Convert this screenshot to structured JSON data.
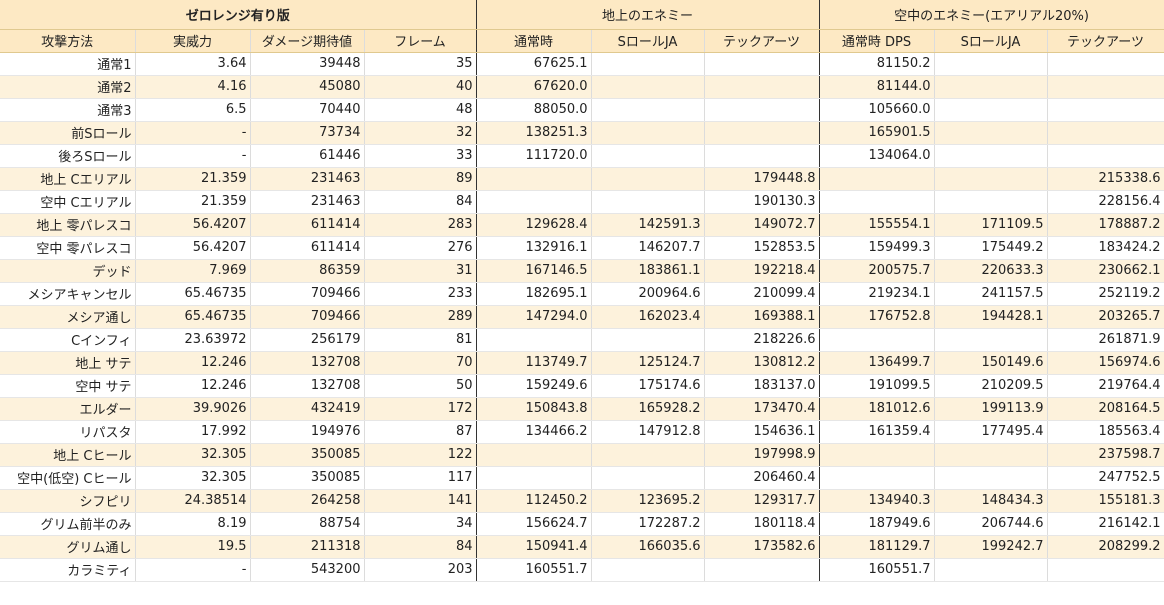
{
  "groups": [
    "ゼロレンジ有り版",
    "地上のエネミー",
    "空中のエネミー(エアリアル20%)"
  ],
  "headers": [
    "攻撃方法",
    "実威力",
    "ダメージ期待値",
    "フレーム",
    "通常時",
    "SロールJA",
    "テックアーツ",
    "通常時 DPS",
    "SロールJA",
    "テックアーツ"
  ],
  "rows": [
    [
      "通常1",
      "3.64",
      "39448",
      "35",
      "67625.1",
      "",
      "",
      "81150.2",
      "",
      ""
    ],
    [
      "通常2",
      "4.16",
      "45080",
      "40",
      "67620.0",
      "",
      "",
      "81144.0",
      "",
      ""
    ],
    [
      "通常3",
      "6.5",
      "70440",
      "48",
      "88050.0",
      "",
      "",
      "105660.0",
      "",
      ""
    ],
    [
      "前Sロール",
      "-",
      "73734",
      "32",
      "138251.3",
      "",
      "",
      "165901.5",
      "",
      ""
    ],
    [
      "後ろSロール",
      "-",
      "61446",
      "33",
      "111720.0",
      "",
      "",
      "134064.0",
      "",
      ""
    ],
    [
      "地上 Cエリアル",
      "21.359",
      "231463",
      "89",
      "",
      "",
      "179448.8",
      "",
      "",
      "215338.6"
    ],
    [
      "空中 Cエリアル",
      "21.359",
      "231463",
      "84",
      "",
      "",
      "190130.3",
      "",
      "",
      "228156.4"
    ],
    [
      "地上 零パレスコ",
      "56.4207",
      "611414",
      "283",
      "129628.4",
      "142591.3",
      "149072.7",
      "155554.1",
      "171109.5",
      "178887.2"
    ],
    [
      "空中 零パレスコ",
      "56.4207",
      "611414",
      "276",
      "132916.1",
      "146207.7",
      "152853.5",
      "159499.3",
      "175449.2",
      "183424.2"
    ],
    [
      "デッド",
      "7.969",
      "86359",
      "31",
      "167146.5",
      "183861.1",
      "192218.4",
      "200575.7",
      "220633.3",
      "230662.1"
    ],
    [
      "メシアキャンセル",
      "65.46735",
      "709466",
      "233",
      "182695.1",
      "200964.6",
      "210099.4",
      "219234.1",
      "241157.5",
      "252119.2"
    ],
    [
      "メシア通し",
      "65.46735",
      "709466",
      "289",
      "147294.0",
      "162023.4",
      "169388.1",
      "176752.8",
      "194428.1",
      "203265.7"
    ],
    [
      "Cインフィ",
      "23.63972",
      "256179",
      "81",
      "",
      "",
      "218226.6",
      "",
      "",
      "261871.9"
    ],
    [
      "地上 サテ",
      "12.246",
      "132708",
      "70",
      "113749.7",
      "125124.7",
      "130812.2",
      "136499.7",
      "150149.6",
      "156974.6"
    ],
    [
      "空中 サテ",
      "12.246",
      "132708",
      "50",
      "159249.6",
      "175174.6",
      "183137.0",
      "191099.5",
      "210209.5",
      "219764.4"
    ],
    [
      "エルダー",
      "39.9026",
      "432419",
      "172",
      "150843.8",
      "165928.2",
      "173470.4",
      "181012.6",
      "199113.9",
      "208164.5"
    ],
    [
      "リパスタ",
      "17.992",
      "194976",
      "87",
      "134466.2",
      "147912.8",
      "154636.1",
      "161359.4",
      "177495.4",
      "185563.4"
    ],
    [
      "地上 Cヒール",
      "32.305",
      "350085",
      "122",
      "",
      "",
      "197998.9",
      "",
      "",
      "237598.7"
    ],
    [
      "空中(低空) Cヒール",
      "32.305",
      "350085",
      "117",
      "",
      "",
      "206460.4",
      "",
      "",
      "247752.5"
    ],
    [
      "シフピリ",
      "24.38514",
      "264258",
      "141",
      "112450.2",
      "123695.2",
      "129317.7",
      "134940.3",
      "148434.3",
      "155181.3"
    ],
    [
      "グリム前半のみ",
      "8.19",
      "88754",
      "34",
      "156624.7",
      "172287.2",
      "180118.4",
      "187949.6",
      "206744.6",
      "216142.1"
    ],
    [
      "グリム通し",
      "19.5",
      "211318",
      "84",
      "150941.4",
      "166035.6",
      "173582.6",
      "181129.7",
      "199242.7",
      "208299.2"
    ],
    [
      "カラミティ",
      "-",
      "543200",
      "203",
      "160551.7",
      "",
      "",
      "160551.7",
      "",
      ""
    ]
  ]
}
